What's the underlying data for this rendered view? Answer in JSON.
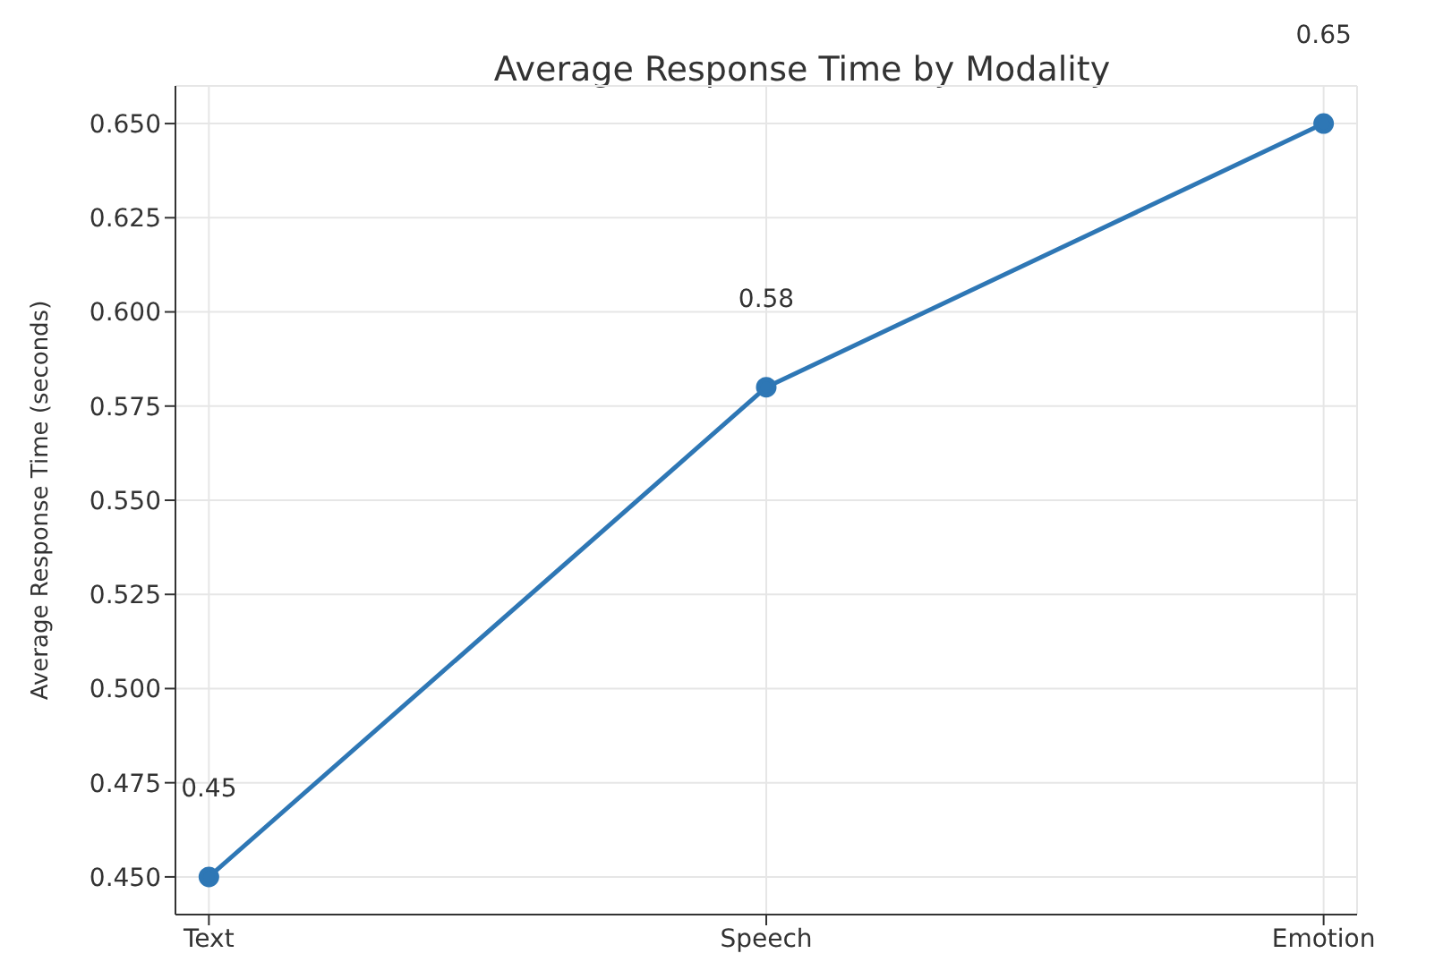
{
  "chart_data": {
    "type": "line",
    "title": "Average Response Time by Modality",
    "ylabel": "Average Response Time (seconds)",
    "categories": [
      "Text",
      "Speech",
      "Emotion"
    ],
    "series": [
      {
        "color": "#2e77b5",
        "values": [
          0.45,
          0.58,
          0.65
        ]
      }
    ],
    "ylim": [
      0.44,
      0.66
    ],
    "yticks": [
      {
        "value": 0.45,
        "label": "0.450"
      },
      {
        "value": 0.475,
        "label": "0.475"
      },
      {
        "value": 0.5,
        "label": "0.500"
      },
      {
        "value": 0.525,
        "label": "0.525"
      },
      {
        "value": 0.55,
        "label": "0.550"
      },
      {
        "value": 0.575,
        "label": "0.575"
      },
      {
        "value": 0.6,
        "label": "0.600"
      },
      {
        "value": 0.625,
        "label": "0.625"
      },
      {
        "value": 0.65,
        "label": "0.650"
      }
    ],
    "grid": true,
    "marker": "circle",
    "line_style": "solid",
    "data_labels": true
  }
}
